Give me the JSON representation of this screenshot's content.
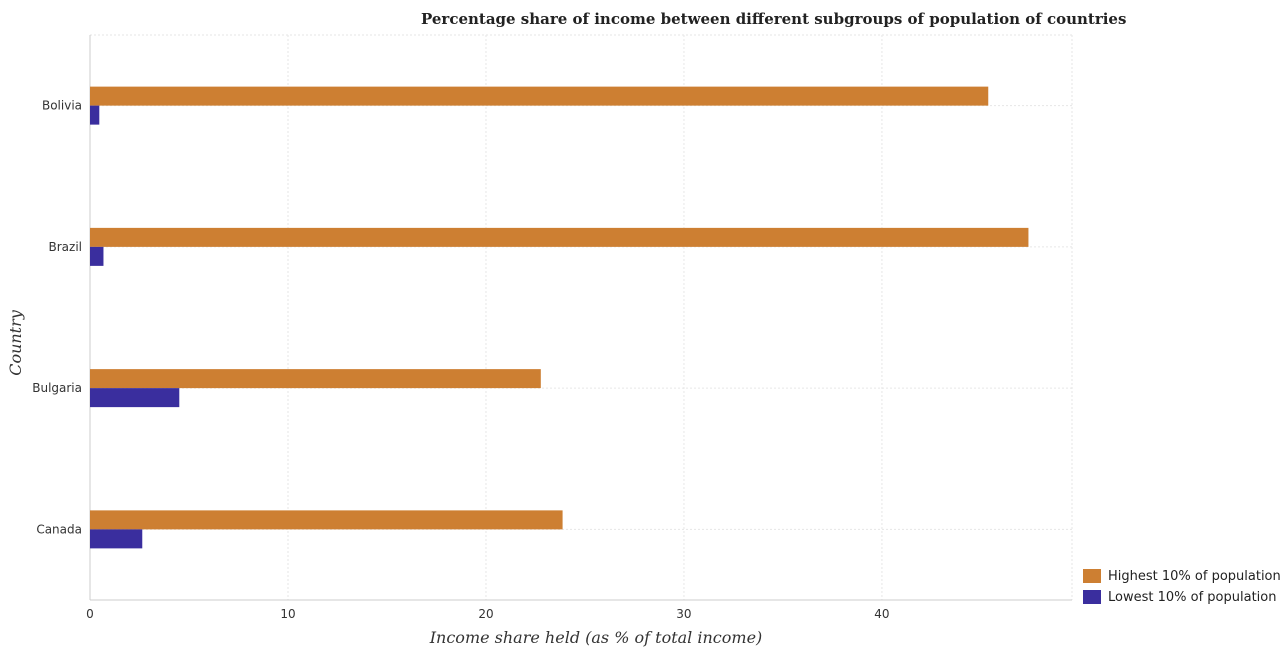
{
  "chart_data": {
    "type": "bar",
    "orientation": "horizontal",
    "title": "Percentage share of income between different subgroups of population of countries",
    "xlabel": "Income share held (as % of total income)",
    "ylabel": "Country",
    "categories": [
      "Bolivia",
      "Brazil",
      "Bulgaria",
      "Canada"
    ],
    "series": [
      {
        "name": "Highest 10% of population",
        "color": "#cd7f32",
        "values": [
          45.37,
          47.4,
          22.77,
          23.87
        ]
      },
      {
        "name": "Lowest 10% of population",
        "color": "#3a2e9e",
        "values": [
          0.47,
          0.68,
          4.51,
          2.64
        ]
      }
    ],
    "xlim": [
      0,
      49.6
    ],
    "xticks": [
      0,
      10,
      20,
      30,
      40
    ],
    "grid": true,
    "legend_position": "bottom-right"
  }
}
